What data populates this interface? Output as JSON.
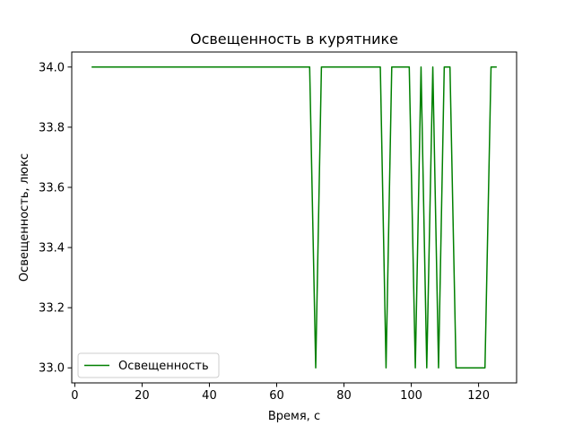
{
  "chart_data": {
    "type": "line",
    "title": "Освещенность в курятнике",
    "xlabel": "Время, с",
    "ylabel": "Освещенность, люкс",
    "xlim": [
      -0.9,
      131.3
    ],
    "ylim": [
      32.95,
      34.05
    ],
    "xticks": [
      0,
      20,
      40,
      60,
      80,
      100,
      120
    ],
    "yticks": [
      33.0,
      33.2,
      33.4,
      33.6,
      33.8,
      34.0
    ],
    "ytick_labels": [
      "33.0",
      "33.2",
      "33.4",
      "33.6",
      "33.8",
      "34.0"
    ],
    "grid": false,
    "legend": {
      "placement": "lower-left"
    },
    "series": [
      {
        "name": "Освещенность",
        "color": "#008000",
        "x": [
          5.0,
          69.8,
          71.6,
          73.3,
          90.8,
          92.5,
          94.2,
          99.4,
          101.2,
          102.9,
          104.6,
          106.4,
          108.1,
          109.8,
          111.5,
          113.3,
          121.9,
          123.7,
          125.4
        ],
        "y": [
          34.0,
          34.0,
          33.0,
          34.0,
          34.0,
          33.0,
          34.0,
          34.0,
          33.0,
          34.0,
          33.0,
          34.0,
          33.0,
          34.0,
          34.0,
          33.0,
          33.0,
          34.0,
          34.0
        ]
      }
    ]
  }
}
